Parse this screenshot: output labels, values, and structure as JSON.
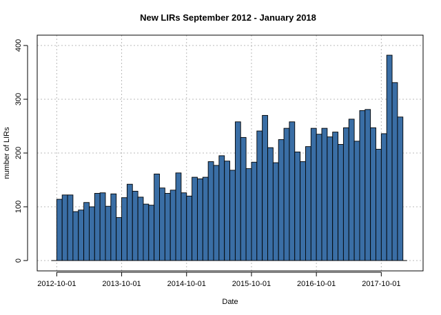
{
  "chart_data": {
    "type": "bar",
    "title": "New LIRs September 2012 - January 2018",
    "xlabel": "Date",
    "ylabel": "number of LIRs",
    "bar_color": "#3a6ea5",
    "grid": true,
    "x_start": "2012-09",
    "x_end": "2018-01",
    "ylim": [
      0,
      420
    ],
    "y_ticks": [
      0,
      100,
      200,
      300,
      400
    ],
    "x_ticks": [
      {
        "label": "2012-10-01",
        "month_offset": 1
      },
      {
        "label": "2013-10-01",
        "month_offset": 13
      },
      {
        "label": "2014-10-01",
        "month_offset": 25
      },
      {
        "label": "2015-10-01",
        "month_offset": 37
      },
      {
        "label": "2016-10-01",
        "month_offset": 49
      },
      {
        "label": "2017-10-01",
        "month_offset": 61
      }
    ],
    "x_gridlines_month_offset": [
      1,
      13,
      25,
      37,
      49,
      61
    ],
    "categories": [
      "2012-09",
      "2012-10",
      "2012-11",
      "2012-12",
      "2013-01",
      "2013-02",
      "2013-03",
      "2013-04",
      "2013-05",
      "2013-06",
      "2013-07",
      "2013-08",
      "2013-09",
      "2013-10",
      "2013-11",
      "2013-12",
      "2014-01",
      "2014-02",
      "2014-03",
      "2014-04",
      "2014-05",
      "2014-06",
      "2014-07",
      "2014-08",
      "2014-09",
      "2014-10",
      "2014-11",
      "2014-12",
      "2015-01",
      "2015-02",
      "2015-03",
      "2015-04",
      "2015-05",
      "2015-06",
      "2015-07",
      "2015-08",
      "2015-09",
      "2015-10",
      "2015-11",
      "2015-12",
      "2016-01",
      "2016-02",
      "2016-03",
      "2016-04",
      "2016-05",
      "2016-06",
      "2016-07",
      "2016-08",
      "2016-09",
      "2016-10",
      "2016-11",
      "2016-12",
      "2017-01",
      "2017-02",
      "2017-03",
      "2017-04",
      "2017-05",
      "2017-06",
      "2017-07",
      "2017-08",
      "2017-09",
      "2017-10",
      "2017-11",
      "2017-12",
      "2018-01"
    ],
    "values": [
      0,
      114,
      122,
      122,
      91,
      94,
      108,
      100,
      125,
      126,
      101,
      124,
      80,
      117,
      142,
      129,
      118,
      105,
      103,
      161,
      135,
      125,
      131,
      163,
      126,
      120,
      155,
      152,
      155,
      184,
      177,
      195,
      185,
      168,
      258,
      229,
      171,
      183,
      241,
      270,
      210,
      182,
      225,
      246,
      258,
      202,
      184,
      212,
      246,
      235,
      246,
      230,
      239,
      216,
      247,
      263,
      222,
      279,
      281,
      247,
      207,
      236,
      382,
      331,
      267
    ]
  }
}
